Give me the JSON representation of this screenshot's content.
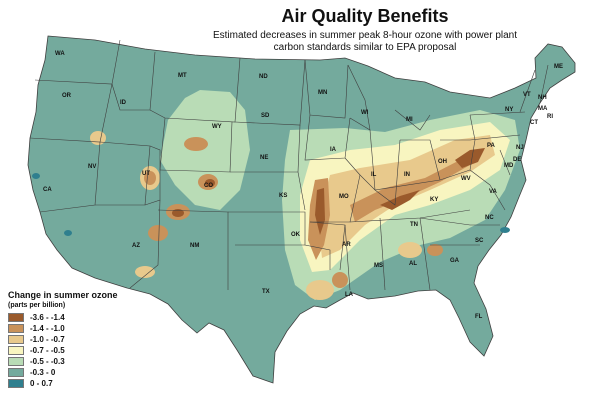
{
  "title": "Air Quality Benefits",
  "subtitle_lines": [
    "Estimated decreases in summer peak 8-hour ozone with power plant",
    "carbon standards similar to EPA proposal"
  ],
  "legend": {
    "title": "Change in summer ozone",
    "subtitle": "(parts per billion)",
    "items": [
      {
        "label": "-3.6 - -1.4",
        "color": "#9a5a2c"
      },
      {
        "label": "-1.4 - -1.0",
        "color": "#c9925a"
      },
      {
        "label": "-1.0 - -0.7",
        "color": "#e8c98c"
      },
      {
        "label": "-0.7 - -0.5",
        "color": "#f8f5c0"
      },
      {
        "label": "-0.5 - -0.3",
        "color": "#b9dcb6"
      },
      {
        "label": "-0.3 - 0",
        "color": "#74aa9d"
      },
      {
        "label": "0 - 0.7",
        "color": "#2f7f8e"
      }
    ]
  },
  "states": [
    "WA",
    "OR",
    "CA",
    "NV",
    "ID",
    "MT",
    "WY",
    "UT",
    "AZ",
    "CO",
    "NM",
    "ND",
    "SD",
    "NE",
    "KS",
    "OK",
    "TX",
    "MN",
    "IA",
    "MO",
    "AR",
    "LA",
    "WI",
    "IL",
    "MI",
    "IN",
    "OH",
    "KY",
    "TN",
    "MS",
    "AL",
    "GA",
    "FL",
    "SC",
    "NC",
    "VA",
    "WV",
    "PA",
    "NY",
    "VT",
    "NH",
    "ME",
    "MA",
    "RI",
    "CT",
    "NJ",
    "DE",
    "MD"
  ]
}
